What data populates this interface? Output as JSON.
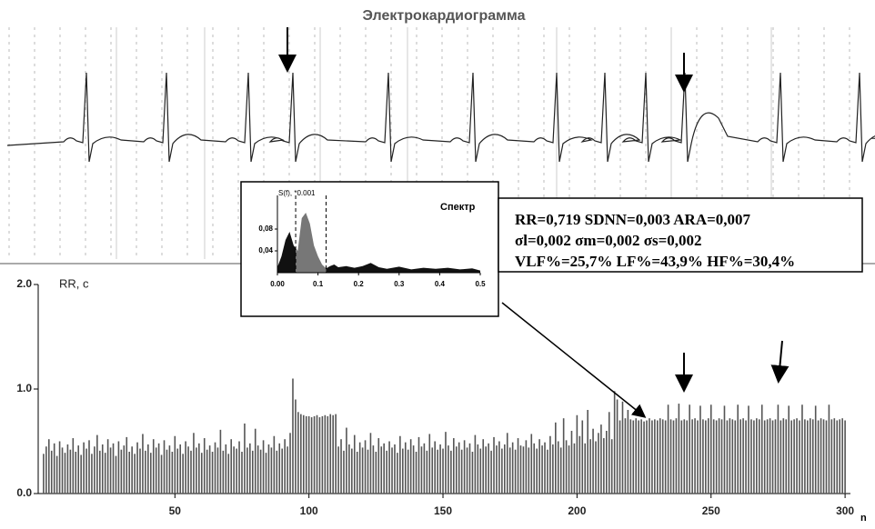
{
  "chart_data": [
    {
      "type": "trace",
      "title": "Электрокардиограмма"
    },
    {
      "type": "area",
      "title": "Спектр",
      "ylabel": "S(f), *0.001",
      "x": [
        0,
        0.01,
        0.02,
        0.03,
        0.04,
        0.05,
        0.06,
        0.07,
        0.08,
        0.09,
        0.1,
        0.11,
        0.12,
        0.13,
        0.14,
        0.15,
        0.17,
        0.19,
        0.21,
        0.23,
        0.25,
        0.27,
        0.3,
        0.33,
        0.36,
        0.39,
        0.42,
        0.45,
        0.48,
        0.5
      ],
      "values": [
        0.01,
        0.03,
        0.06,
        0.075,
        0.05,
        0.04,
        0.1,
        0.11,
        0.09,
        0.05,
        0.03,
        0.015,
        0.008,
        0.012,
        0.015,
        0.01,
        0.012,
        0.009,
        0.012,
        0.018,
        0.01,
        0.007,
        0.011,
        0.006,
        0.009,
        0.007,
        0.009,
        0.006,
        0.008,
        0.004
      ],
      "xlim": [
        0,
        0.5
      ],
      "ylim": [
        0,
        0.12
      ],
      "xticks": [
        {
          "value": 0,
          "label": "0.00"
        },
        0.1,
        0.2,
        0.3,
        0.4,
        0.5
      ],
      "yticks": [
        {
          "value": 0.04,
          "label": "0,04"
        },
        {
          "value": 0.08,
          "label": "0,08"
        }
      ],
      "band_lines": [
        0.045,
        0.12
      ],
      "color": "#111",
      "band_color": "#777",
      "annotations": [
        "RR=0,719 SDNN=0,003 ARA=0,007",
        "σl=0,002 σm=0,002 σs=0,002",
        "VLF%=25,7% LF%=43,9% HF%=30,4%"
      ]
    },
    {
      "type": "bar",
      "ylabel": "RR, c",
      "xlabel": "n",
      "color": "#555",
      "x": [
        1,
        2,
        3,
        4,
        5,
        6,
        7,
        8,
        9,
        10,
        11,
        12,
        13,
        14,
        15,
        16,
        17,
        18,
        19,
        20,
        21,
        22,
        23,
        24,
        25,
        26,
        27,
        28,
        29,
        30,
        31,
        32,
        33,
        34,
        35,
        36,
        37,
        38,
        39,
        40,
        41,
        42,
        43,
        44,
        45,
        46,
        47,
        48,
        49,
        50,
        51,
        52,
        53,
        54,
        55,
        56,
        57,
        58,
        59,
        60,
        61,
        62,
        63,
        64,
        65,
        66,
        67,
        68,
        69,
        70,
        71,
        72,
        73,
        74,
        75,
        76,
        77,
        78,
        79,
        80,
        81,
        82,
        83,
        84,
        85,
        86,
        87,
        88,
        89,
        90,
        91,
        92,
        93,
        94,
        95,
        96,
        97,
        98,
        99,
        100,
        101,
        102,
        103,
        104,
        105,
        106,
        107,
        108,
        109,
        110,
        111,
        112,
        113,
        114,
        115,
        116,
        117,
        118,
        119,
        120,
        121,
        122,
        123,
        124,
        125,
        126,
        127,
        128,
        129,
        130,
        131,
        132,
        133,
        134,
        135,
        136,
        137,
        138,
        139,
        140,
        141,
        142,
        143,
        144,
        145,
        146,
        147,
        148,
        149,
        150,
        151,
        152,
        153,
        154,
        155,
        156,
        157,
        158,
        159,
        160,
        161,
        162,
        163,
        164,
        165,
        166,
        167,
        168,
        169,
        170,
        171,
        172,
        173,
        174,
        175,
        176,
        177,
        178,
        179,
        180,
        181,
        182,
        183,
        184,
        185,
        186,
        187,
        188,
        189,
        190,
        191,
        192,
        193,
        194,
        195,
        196,
        197,
        198,
        199,
        200,
        201,
        202,
        203,
        204,
        205,
        206,
        207,
        208,
        209,
        210,
        211,
        212,
        213,
        214,
        215,
        216,
        217,
        218,
        219,
        220,
        221,
        222,
        223,
        224,
        225,
        226,
        227,
        228,
        229,
        230,
        231,
        232,
        233,
        234,
        235,
        236,
        237,
        238,
        239,
        240,
        241,
        242,
        243,
        244,
        245,
        246,
        247,
        248,
        249,
        250,
        251,
        252,
        253,
        254,
        255,
        256,
        257,
        258,
        259,
        260,
        261,
        262,
        263,
        264,
        265,
        266,
        267,
        268,
        269,
        270,
        271,
        272,
        273,
        274,
        275,
        276,
        277,
        278,
        279,
        280,
        281,
        282,
        283,
        284,
        285,
        286,
        287,
        288,
        289,
        290,
        291,
        292,
        293,
        294,
        295,
        296,
        297,
        298,
        299,
        300
      ],
      "values": [
        0.38,
        0.45,
        0.52,
        0.41,
        0.48,
        0.36,
        0.5,
        0.44,
        0.39,
        0.47,
        0.42,
        0.53,
        0.4,
        0.46,
        0.37,
        0.49,
        0.43,
        0.51,
        0.38,
        0.45,
        0.56,
        0.41,
        0.47,
        0.39,
        0.52,
        0.44,
        0.48,
        0.36,
        0.5,
        0.42,
        0.46,
        0.54,
        0.4,
        0.45,
        0.38,
        0.49,
        0.43,
        0.57,
        0.41,
        0.47,
        0.39,
        0.52,
        0.44,
        0.48,
        0.37,
        0.51,
        0.42,
        0.46,
        0.4,
        0.55,
        0.43,
        0.47,
        0.38,
        0.5,
        0.45,
        0.41,
        0.58,
        0.44,
        0.48,
        0.39,
        0.53,
        0.42,
        0.46,
        0.4,
        0.49,
        0.44,
        0.61,
        0.41,
        0.47,
        0.38,
        0.52,
        0.45,
        0.43,
        0.5,
        0.4,
        0.67,
        0.44,
        0.48,
        0.41,
        0.62,
        0.46,
        0.42,
        0.51,
        0.39,
        0.47,
        0.44,
        0.55,
        0.41,
        0.48,
        0.43,
        0.52,
        0.45,
        0.58,
        1.1,
        0.9,
        0.78,
        0.76,
        0.75,
        0.74,
        0.74,
        0.73,
        0.74,
        0.75,
        0.73,
        0.74,
        0.75,
        0.74,
        0.76,
        0.75,
        0.76,
        0.45,
        0.52,
        0.41,
        0.63,
        0.47,
        0.43,
        0.56,
        0.4,
        0.49,
        0.44,
        0.51,
        0.42,
        0.58,
        0.46,
        0.4,
        0.53,
        0.45,
        0.48,
        0.41,
        0.5,
        0.44,
        0.47,
        0.39,
        0.55,
        0.43,
        0.49,
        0.42,
        0.52,
        0.46,
        0.4,
        0.54,
        0.45,
        0.48,
        0.41,
        0.57,
        0.44,
        0.5,
        0.42,
        0.47,
        0.43,
        0.59,
        0.46,
        0.41,
        0.53,
        0.45,
        0.49,
        0.42,
        0.51,
        0.44,
        0.48,
        0.4,
        0.56,
        0.47,
        0.43,
        0.52,
        0.45,
        0.48,
        0.41,
        0.54,
        0.46,
        0.5,
        0.43,
        0.47,
        0.58,
        0.44,
        0.49,
        0.42,
        0.53,
        0.46,
        0.45,
        0.51,
        0.44,
        0.57,
        0.48,
        0.43,
        0.52,
        0.46,
        0.49,
        0.42,
        0.55,
        0.47,
        0.68,
        0.5,
        0.44,
        0.72,
        0.51,
        0.46,
        0.6,
        0.48,
        0.75,
        0.55,
        0.7,
        0.48,
        0.8,
        0.52,
        0.62,
        0.5,
        0.58,
        0.66,
        0.53,
        0.6,
        0.78,
        0.52,
        0.98,
        0.9,
        0.7,
        0.88,
        0.72,
        0.8,
        0.71,
        0.7,
        0.72,
        0.7,
        0.71,
        0.69,
        0.7,
        0.72,
        0.7,
        0.71,
        0.7,
        0.72,
        0.71,
        0.7,
        0.85,
        0.71,
        0.7,
        0.72,
        0.86,
        0.7,
        0.71,
        0.7,
        0.85,
        0.71,
        0.72,
        0.7,
        0.84,
        0.71,
        0.7,
        0.72,
        0.85,
        0.71,
        0.7,
        0.72,
        0.71,
        0.84,
        0.7,
        0.72,
        0.71,
        0.7,
        0.85,
        0.71,
        0.72,
        0.7,
        0.84,
        0.71,
        0.7,
        0.72,
        0.71,
        0.85,
        0.7,
        0.71,
        0.72,
        0.7,
        0.71,
        0.85,
        0.7,
        0.72,
        0.71,
        0.84,
        0.7,
        0.71,
        0.72,
        0.7,
        0.85,
        0.71,
        0.7,
        0.72,
        0.71,
        0.84,
        0.7,
        0.72,
        0.71,
        0.7,
        0.85,
        0.71,
        0.72,
        0.7,
        0.71,
        0.72,
        0.7
      ],
      "xlim": [
        -1,
        302
      ],
      "ylim": [
        0,
        2
      ],
      "xticks": [
        50,
        100,
        150,
        200,
        250,
        300
      ],
      "yticks": [
        {
          "value": 0,
          "label": "0.0"
        },
        {
          "value": 1,
          "label": "1.0"
        },
        {
          "value": 2,
          "label": "2.0"
        }
      ]
    }
  ]
}
